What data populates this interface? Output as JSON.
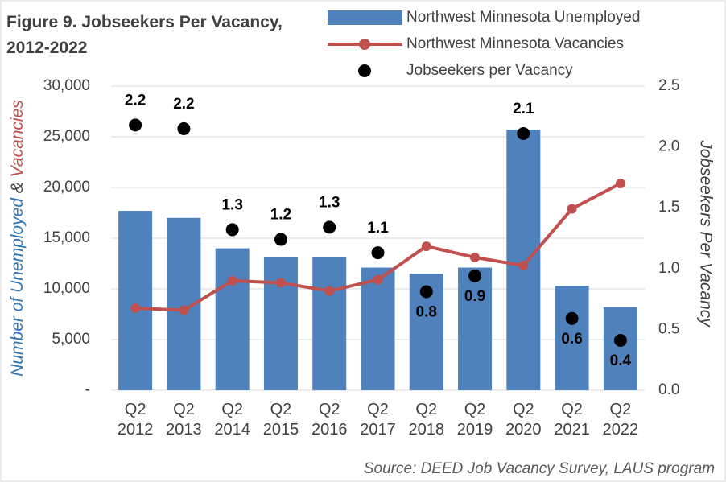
{
  "chart_data": {
    "type": "bar_line_dots",
    "title": "Figure 9. Jobseekers Per Vacancy, 2012-2022",
    "ylabel": [
      "Number of Unemployed",
      "&",
      "Vacancies"
    ],
    "y2label": "Jobseekers Per Vacancy",
    "source": "Source: DEED Job Vacancy Survey, LAUS program",
    "categories": [
      "Q2 2012",
      "Q2 2013",
      "Q2 2014",
      "Q2 2015",
      "Q2 2016",
      "Q2 2017",
      "Q2 2018",
      "Q2 2019",
      "Q2 2020",
      "Q2 2021",
      "Q2 2022"
    ],
    "series": [
      {
        "name": "Northwest Minnesota Unemployed",
        "type": "bar",
        "color": "#4f81bd",
        "values": [
          17700,
          17000,
          14000,
          13100,
          13100,
          12100,
          11500,
          12100,
          25700,
          10300,
          8200
        ]
      },
      {
        "name": "Northwest Minnesota Vacancies",
        "type": "line",
        "color": "#c0504d",
        "values": [
          8100,
          7900,
          10800,
          10600,
          9800,
          10900,
          14200,
          13100,
          12300,
          17900,
          20400
        ]
      },
      {
        "name": "Jobseekers per Vacancy",
        "type": "dot",
        "axis": "y2",
        "color": "#000000",
        "values": [
          2.18,
          2.15,
          1.32,
          1.24,
          1.34,
          1.13,
          0.81,
          0.94,
          2.11,
          0.59,
          0.41
        ],
        "value_labels": [
          "2.2",
          "2.2",
          "1.3",
          "1.2",
          "1.3",
          "1.1",
          "0.8",
          "0.9",
          "2.1",
          "0.6",
          "0.4"
        ]
      }
    ],
    "ylim": [
      0,
      30000
    ],
    "yticks": [
      {
        "value": 0,
        "label": "-"
      },
      {
        "value": 5000,
        "label": "5,000"
      },
      {
        "value": 10000,
        "label": "10,000"
      },
      {
        "value": 15000,
        "label": "15,000"
      },
      {
        "value": 20000,
        "label": "20,000"
      },
      {
        "value": 25000,
        "label": "25,000"
      },
      {
        "value": 30000,
        "label": "30,000"
      }
    ],
    "y2lim": [
      0,
      2.5
    ],
    "y2ticks": [
      {
        "value": 0,
        "label": "0.0"
      },
      {
        "value": 0.5,
        "label": "0.5"
      },
      {
        "value": 1,
        "label": "1.0"
      },
      {
        "value": 1.5,
        "label": "1.5"
      },
      {
        "value": 2,
        "label": "2.0"
      },
      {
        "value": 2.5,
        "label": "2.5"
      }
    ],
    "grid": true
  }
}
